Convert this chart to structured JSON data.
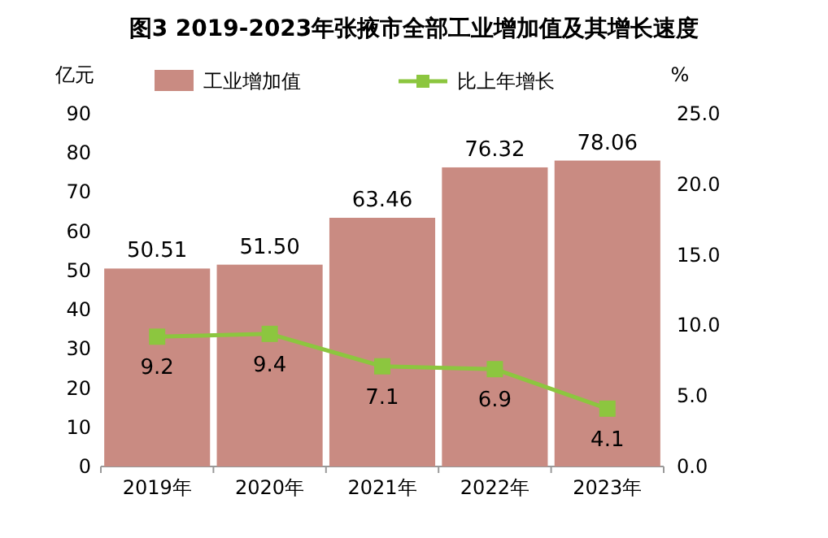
{
  "chart_data": {
    "type": "bar",
    "title": "图3 2019-2023年张掖市全部工业增加值及其增长速度",
    "ylabel": "亿元",
    "y2label": "%",
    "categories": [
      "2019年",
      "2020年",
      "2021年",
      "2022年",
      "2023年"
    ],
    "series": [
      {
        "name": "工业增加值",
        "color": "#c98b82",
        "values": [
          50.51,
          51.5,
          63.46,
          76.32,
          78.06
        ],
        "value_labels": [
          "50.51",
          "51.50",
          "63.46",
          "76.32",
          "78.06"
        ]
      },
      {
        "name": "比上年增长",
        "type": "line",
        "axis": "y2",
        "color": "#8cc63f",
        "marker": "square",
        "values": [
          9.2,
          9.4,
          7.1,
          6.9,
          4.1
        ],
        "value_labels": [
          "9.2",
          "9.4",
          "7.1",
          "6.9",
          "4.1"
        ]
      }
    ],
    "ylim": [
      0,
      90
    ],
    "yticks": [
      0,
      10,
      20,
      30,
      40,
      50,
      60,
      70,
      80,
      90
    ],
    "y2lim": [
      0,
      25
    ],
    "y2ticks": [
      {
        "value": 0,
        "label": "0.0"
      },
      {
        "value": 5,
        "label": "5.0"
      },
      {
        "value": 10,
        "label": "10.0"
      },
      {
        "value": 15,
        "label": "15.0"
      },
      {
        "value": 20,
        "label": "20.0"
      },
      {
        "value": 25,
        "label": "25.0"
      }
    ],
    "grid": false,
    "legend": "top left"
  }
}
